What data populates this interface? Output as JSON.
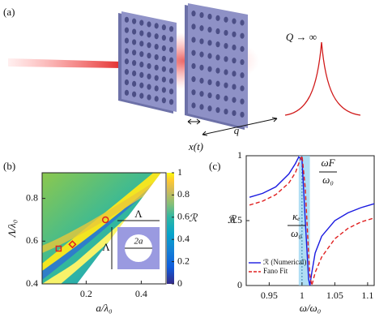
{
  "panel_a": {
    "label": "(a)",
    "q_label": "Q → ∞",
    "x_label": "x(t)",
    "gap_label": "q"
  },
  "chart_data": [
    {
      "type": "heatmap",
      "panel_label": "(b)",
      "x_label": "a/λ₀",
      "y_label": "Λ/λ₀",
      "xlim": [
        0.04,
        0.49
      ],
      "xticks": [
        0.2,
        0.4
      ],
      "ylim": [
        0.4,
        0.92
      ],
      "yticks": [
        0.4,
        0.6,
        0.8
      ],
      "colorbar": {
        "label": "ℛ",
        "lim": [
          0,
          1
        ],
        "ticks": [
          0,
          0.2,
          0.4,
          0.6,
          0.8,
          1
        ]
      },
      "markers": [
        {
          "shape": "square",
          "x": 0.1,
          "y": 0.565,
          "color": "#e02020"
        },
        {
          "shape": "diamond",
          "x": 0.15,
          "y": 0.585,
          "color": "#e02020"
        },
        {
          "shape": "circle",
          "x": 0.27,
          "y": 0.7,
          "color": "#e02020"
        }
      ],
      "inset_labels": [
        "Λ",
        "Λ",
        "2a"
      ]
    },
    {
      "type": "line",
      "panel_label": "(c)",
      "x_label": "ω/ω₀",
      "y_label": "ℛ",
      "xlim": [
        0.915,
        1.11
      ],
      "xticks": [
        0.95,
        1,
        1.05,
        1.1
      ],
      "ylim": [
        0,
        1
      ],
      "yticks": [
        0,
        0.5,
        1
      ],
      "x": [
        0.92,
        0.94,
        0.96,
        0.98,
        0.99,
        0.995,
        1.0,
        1.005,
        1.01,
        1.012,
        1.015,
        1.02,
        1.03,
        1.05,
        1.07,
        1.09,
        1.11
      ],
      "series": [
        {
          "name": "ℛ (Numerical)",
          "color": "#1a1ae0",
          "dash": false,
          "values": [
            0.68,
            0.71,
            0.76,
            0.86,
            0.94,
            0.99,
            0.97,
            0.5,
            0.05,
            0.0,
            0.1,
            0.25,
            0.38,
            0.5,
            0.56,
            0.6,
            0.63
          ]
        },
        {
          "name": "Fano Fit",
          "color": "#e02020",
          "dash": true,
          "values": [
            0.62,
            0.65,
            0.7,
            0.79,
            0.87,
            0.94,
            1.0,
            0.75,
            0.25,
            0.08,
            0.0,
            0.1,
            0.22,
            0.36,
            0.44,
            0.49,
            0.52
          ]
        }
      ],
      "band": [
        0.995,
        1.012
      ],
      "center_line": 1.0,
      "annotations": [
        {
          "numerator": "ωF",
          "denominator": "ω₀"
        },
        {
          "numerator": "κₑ",
          "denominator": "ω₀"
        }
      ],
      "legend": "lower left"
    }
  ]
}
